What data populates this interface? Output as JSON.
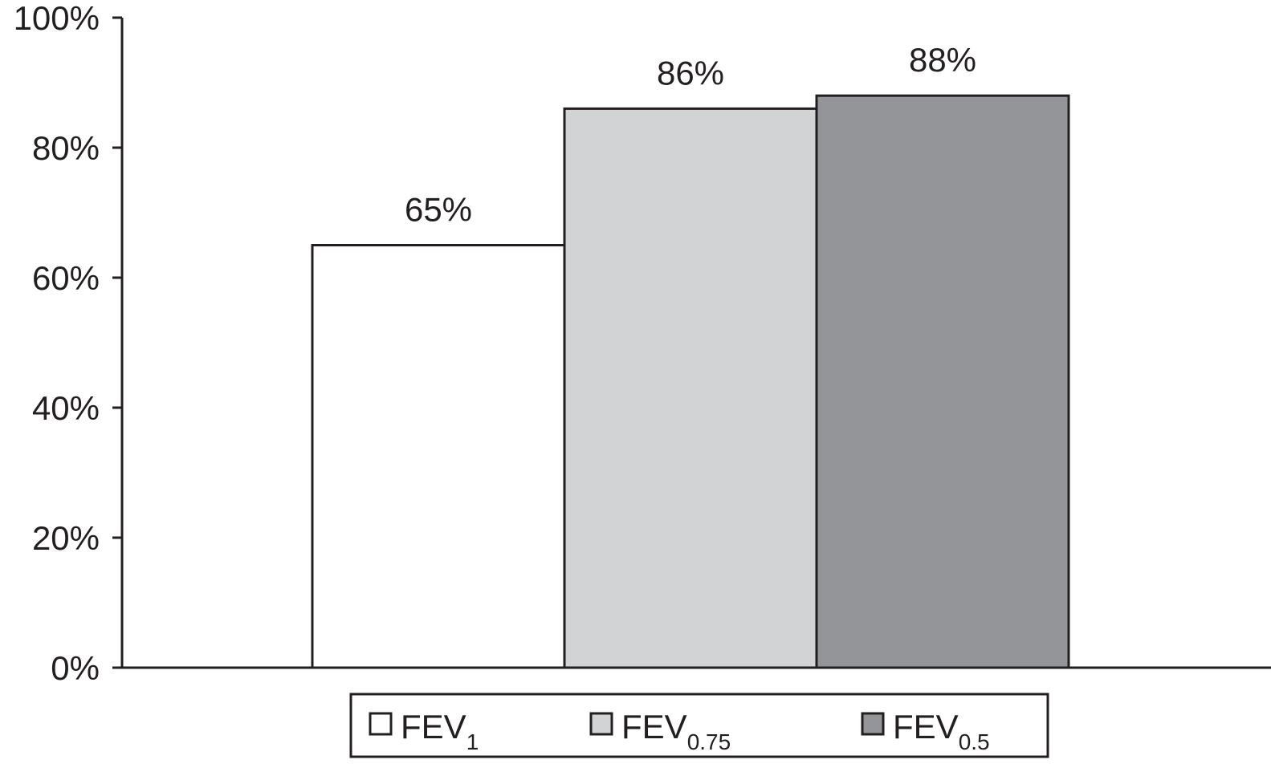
{
  "chart_data": {
    "type": "bar",
    "categories": [
      "FEV1",
      "FEV0.75",
      "FEV0.5"
    ],
    "values": [
      65,
      86,
      88
    ],
    "value_labels": [
      "65%",
      "86%",
      "88%"
    ],
    "ylim": [
      0,
      100
    ],
    "yticks": [
      0,
      20,
      40,
      60,
      80,
      100
    ],
    "ytick_labels": [
      "0%",
      "20%",
      "40%",
      "60%",
      "80%",
      "100%"
    ],
    "grid": false,
    "legend_position": "bottom",
    "legend": [
      {
        "base": "FEV",
        "sub": "1",
        "color": "#ffffff"
      },
      {
        "base": "FEV",
        "sub": "0.75",
        "color": "#d1d3d4"
      },
      {
        "base": "FEV",
        "sub": "0.5",
        "color": "#939598"
      }
    ],
    "colors": [
      "#ffffff",
      "#d1d3d4",
      "#939598"
    ],
    "edge_color": "#231f20"
  }
}
